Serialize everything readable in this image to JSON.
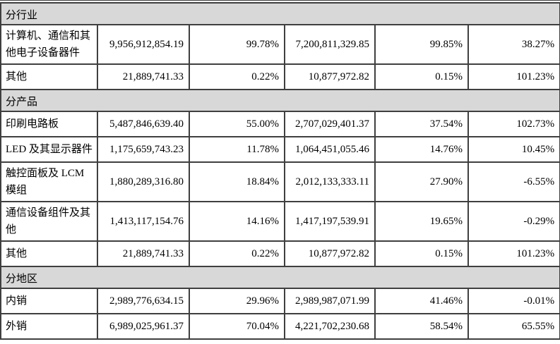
{
  "table": {
    "colors": {
      "section_header_bg": "#d8d8d8",
      "border": "#3f3f3f",
      "text": "#000000",
      "cell_bg": "#ffffff"
    },
    "sections": [
      {
        "header": "分行业",
        "rows": [
          {
            "label": "计算机、通信和其他电子设备器件",
            "cells": [
              "9,956,912,854.19",
              "99.78%",
              "7,200,811,329.85",
              "99.85%",
              "38.27%"
            ]
          },
          {
            "label": "其他",
            "cells": [
              "21,889,741.33",
              "0.22%",
              "10,877,972.82",
              "0.15%",
              "101.23%"
            ]
          }
        ]
      },
      {
        "header": "分产品",
        "rows": [
          {
            "label": "印刷电路板",
            "cells": [
              "5,487,846,639.40",
              "55.00%",
              "2,707,029,401.37",
              "37.54%",
              "102.73%"
            ]
          },
          {
            "label": "LED 及其显示器件",
            "cells": [
              "1,175,659,743.23",
              "11.78%",
              "1,064,451,055.46",
              "14.76%",
              "10.45%"
            ]
          },
          {
            "label": "触控面板及 LCM 模组",
            "cells": [
              "1,880,289,316.80",
              "18.84%",
              "2,012,133,333.11",
              "27.90%",
              "-6.55%"
            ]
          },
          {
            "label": "通信设备组件及其他",
            "cells": [
              "1,413,117,154.76",
              "14.16%",
              "1,417,197,539.91",
              "19.65%",
              "-0.29%"
            ]
          },
          {
            "label": "其他",
            "cells": [
              "21,889,741.33",
              "0.22%",
              "10,877,972.82",
              "0.15%",
              "101.23%"
            ]
          }
        ]
      },
      {
        "header": "分地区",
        "rows": [
          {
            "label": "内销",
            "cells": [
              "2,989,776,634.15",
              "29.96%",
              "2,989,987,071.99",
              "41.46%",
              "-0.01%"
            ]
          },
          {
            "label": "外销",
            "cells": [
              "6,989,025,961.37",
              "70.04%",
              "4,221,702,230.68",
              "58.54%",
              "65.55%"
            ]
          }
        ]
      }
    ]
  }
}
